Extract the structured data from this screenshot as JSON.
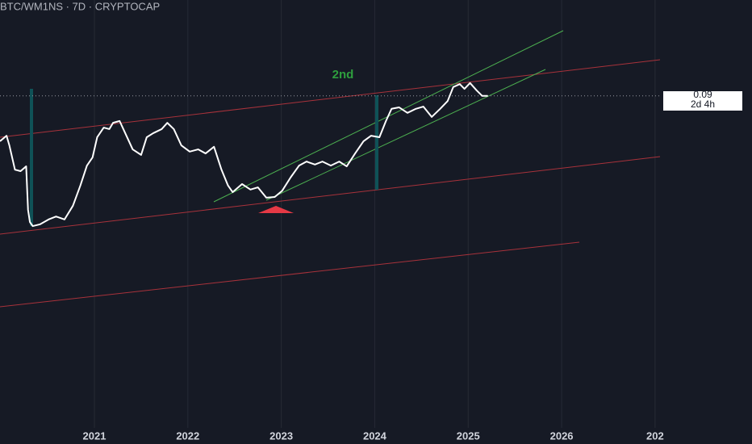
{
  "chart_data": {
    "type": "line",
    "title": "BTC/WM1NS · 7D · CRYPTOCAP",
    "annotation": "2nd",
    "price_label": 0.09,
    "countdown": "2d 4h",
    "xlim": [
      2019.99,
      2027.07
    ],
    "xticks": [
      2021,
      2022,
      2023,
      2024,
      2025,
      2026,
      {
        "value": 2027,
        "label": "202"
      }
    ],
    "ylim": [
      0,
      0.116
    ],
    "grid": true,
    "series": [
      {
        "color": "#ffffff",
        "x": [
          2019.99,
          2020.06,
          2020.09,
          2020.15,
          2020.21,
          2020.27,
          2020.29,
          2020.31,
          2020.34,
          2020.42,
          2020.51,
          2020.59,
          2020.68,
          2020.77,
          2020.85,
          2020.92,
          2020.98,
          2021.03,
          2021.1,
          2021.16,
          2021.2,
          2021.27,
          2021.33,
          2021.41,
          2021.5,
          2021.56,
          2021.63,
          2021.72,
          2021.78,
          2021.85,
          2021.93,
          2022.02,
          2022.11,
          2022.19,
          2022.28,
          2022.36,
          2022.43,
          2022.48,
          2022.58,
          2022.67,
          2022.75,
          2022.84,
          2022.93,
          2023.01,
          2023.1,
          2023.19,
          2023.27,
          2023.36,
          2023.44,
          2023.53,
          2023.62,
          2023.7,
          2023.79,
          2023.88,
          2023.96,
          2024.05,
          2024.12,
          2024.18,
          2024.26,
          2024.35,
          2024.44,
          2024.52,
          2024.61,
          2024.7,
          2024.78,
          2024.84,
          2024.91,
          2024.96,
          2025.02,
          2025.09,
          2025.15,
          2025.21
        ],
        "values": [
          0.0777,
          0.0792,
          0.0766,
          0.07,
          0.0696,
          0.0709,
          0.0591,
          0.0558,
          0.0547,
          0.0552,
          0.0565,
          0.0573,
          0.0565,
          0.0602,
          0.0657,
          0.0711,
          0.0733,
          0.0788,
          0.0814,
          0.081,
          0.0827,
          0.0832,
          0.0799,
          0.0755,
          0.074,
          0.0788,
          0.0799,
          0.081,
          0.0827,
          0.081,
          0.0766,
          0.0749,
          0.0755,
          0.0744,
          0.0762,
          0.07,
          0.0657,
          0.0639,
          0.0661,
          0.0646,
          0.0652,
          0.0624,
          0.0626,
          0.0643,
          0.0679,
          0.0711,
          0.0722,
          0.0714,
          0.0722,
          0.0711,
          0.0722,
          0.0709,
          0.0744,
          0.0777,
          0.0792,
          0.0788,
          0.0832,
          0.0865,
          0.0869,
          0.0854,
          0.0865,
          0.0871,
          0.0843,
          0.0865,
          0.0886,
          0.0924,
          0.0932,
          0.0919,
          0.0935,
          0.0915,
          0.09,
          0.09
        ]
      }
    ]
  }
}
